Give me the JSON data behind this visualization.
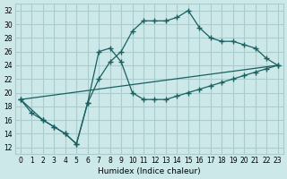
{
  "background_color": "#cce8e8",
  "grid_color": "#aacccc",
  "line_color": "#1a6060",
  "xlabel": "Humidex (Indice chaleur)",
  "xlim": [
    -0.5,
    23.5
  ],
  "ylim": [
    11,
    33
  ],
  "xticks": [
    0,
    1,
    2,
    3,
    4,
    5,
    6,
    7,
    8,
    9,
    10,
    11,
    12,
    13,
    14,
    15,
    16,
    17,
    18,
    19,
    20,
    21,
    22,
    23
  ],
  "yticks": [
    12,
    14,
    16,
    18,
    20,
    22,
    24,
    26,
    28,
    30,
    32
  ],
  "line1_x": [
    0,
    1,
    2,
    3,
    4,
    5,
    6,
    7,
    8,
    9,
    10,
    11,
    12,
    13,
    14,
    15,
    16,
    17,
    18,
    19,
    20,
    21,
    22,
    23
  ],
  "line1_y": [
    19,
    17,
    16,
    15,
    14,
    12.5,
    18.5,
    22,
    24.5,
    26,
    29,
    30.5,
    30.5,
    30.5,
    31,
    32,
    29.5,
    28,
    27.5,
    27.5,
    27,
    26.5,
    25,
    24
  ],
  "line2_x": [
    0,
    2,
    3,
    4,
    5,
    6,
    7,
    8,
    9,
    10,
    11,
    12,
    13,
    14,
    15,
    16,
    17,
    18,
    19,
    20,
    21,
    22,
    23
  ],
  "line2_y": [
    19,
    16,
    15,
    14,
    12.5,
    18.5,
    26,
    26.5,
    24.5,
    20,
    19,
    19,
    19,
    19.5,
    20,
    20.5,
    21,
    21.5,
    22,
    22.5,
    23,
    23.5,
    24
  ],
  "line3_x": [
    0,
    23
  ],
  "line3_y": [
    19,
    24
  ]
}
